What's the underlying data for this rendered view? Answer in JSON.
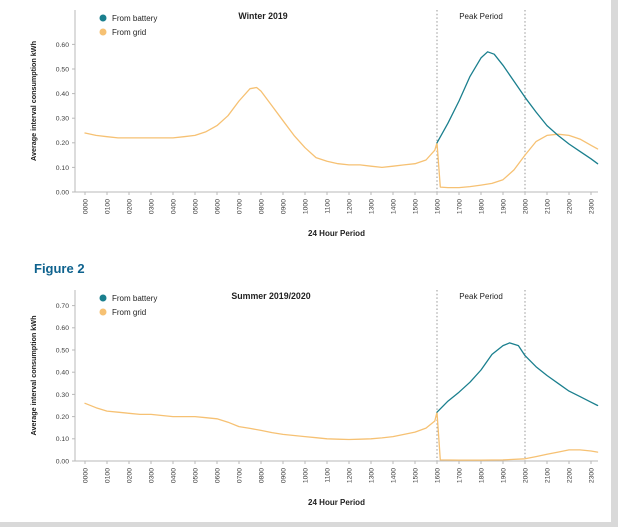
{
  "figure_label": "Figure 2",
  "colors": {
    "battery": "#1a7f8e",
    "grid": "#f6c173",
    "figure_label": "#0e628e",
    "axis": "#b9b9b9",
    "tick_text": "#3c3c3c",
    "text": "#1f1f1f",
    "peak_line": "#8c8c8c"
  },
  "chart_data": [
    {
      "type": "line",
      "title": "Winter 2019",
      "ylabel": "Average interval consumption kWh",
      "xlabel": "24 Hour Period",
      "ylim": [
        0,
        0.6
      ],
      "y_tick_labels": [
        "0.00",
        "0.10",
        "0.20",
        "0.30",
        "0.40",
        "0.50",
        "0.60"
      ],
      "x_tick_labels": [
        "0000",
        "0100",
        "0200",
        "0300",
        "0400",
        "0500",
        "0600",
        "0700",
        "0800",
        "0900",
        "1000",
        "1100",
        "1200",
        "1300",
        "1400",
        "1500",
        "1600",
        "1700",
        "1800",
        "1900",
        "2000",
        "2100",
        "2200",
        "2300"
      ],
      "peak_period": {
        "label": "Peak Period",
        "from_hour": 16,
        "to_hour": 20
      },
      "series": [
        {
          "name": "From battery",
          "color_key": "battery",
          "points": [
            [
              16,
              0.2
            ],
            [
              16.5,
              0.28
            ],
            [
              17,
              0.37
            ],
            [
              17.5,
              0.47
            ],
            [
              18,
              0.545
            ],
            [
              18.3,
              0.57
            ],
            [
              18.6,
              0.56
            ],
            [
              19,
              0.515
            ],
            [
              19.5,
              0.45
            ],
            [
              20,
              0.385
            ],
            [
              20.5,
              0.325
            ],
            [
              21,
              0.27
            ],
            [
              21.5,
              0.23
            ],
            [
              22,
              0.195
            ],
            [
              22.5,
              0.165
            ],
            [
              23,
              0.135
            ],
            [
              23.3,
              0.115
            ]
          ]
        },
        {
          "name": "From grid",
          "color_key": "grid",
          "points": [
            [
              0,
              0.24
            ],
            [
              0.5,
              0.23
            ],
            [
              1,
              0.225
            ],
            [
              1.5,
              0.22
            ],
            [
              2,
              0.22
            ],
            [
              2.5,
              0.22
            ],
            [
              3,
              0.22
            ],
            [
              3.5,
              0.22
            ],
            [
              4,
              0.22
            ],
            [
              4.5,
              0.225
            ],
            [
              5,
              0.23
            ],
            [
              5.5,
              0.245
            ],
            [
              6,
              0.27
            ],
            [
              6.5,
              0.31
            ],
            [
              7,
              0.37
            ],
            [
              7.5,
              0.42
            ],
            [
              7.8,
              0.425
            ],
            [
              8,
              0.41
            ],
            [
              8.5,
              0.35
            ],
            [
              9,
              0.29
            ],
            [
              9.5,
              0.23
            ],
            [
              10,
              0.18
            ],
            [
              10.5,
              0.14
            ],
            [
              11,
              0.125
            ],
            [
              11.5,
              0.115
            ],
            [
              12,
              0.11
            ],
            [
              12.5,
              0.11
            ],
            [
              13,
              0.105
            ],
            [
              13.5,
              0.1
            ],
            [
              14,
              0.105
            ],
            [
              14.5,
              0.11
            ],
            [
              15,
              0.115
            ],
            [
              15.5,
              0.13
            ],
            [
              15.9,
              0.17
            ],
            [
              16,
              0.2
            ],
            [
              16.15,
              0.02
            ],
            [
              16.5,
              0.018
            ],
            [
              17,
              0.018
            ],
            [
              17.5,
              0.022
            ],
            [
              18,
              0.028
            ],
            [
              18.5,
              0.035
            ],
            [
              19,
              0.05
            ],
            [
              19.5,
              0.09
            ],
            [
              20,
              0.15
            ],
            [
              20.5,
              0.205
            ],
            [
              21,
              0.23
            ],
            [
              21.5,
              0.235
            ],
            [
              22,
              0.23
            ],
            [
              22.5,
              0.215
            ],
            [
              23,
              0.19
            ],
            [
              23.3,
              0.175
            ]
          ]
        }
      ]
    },
    {
      "type": "line",
      "title": "Summer 2019/2020",
      "ylabel": "Average interval consumption kWh",
      "xlabel": "24 Hour Period",
      "ylim": [
        0,
        0.7
      ],
      "y_tick_labels": [
        "0.00",
        "0.10",
        "0.20",
        "0.30",
        "0.40",
        "0.50",
        "0.60",
        "0.70"
      ],
      "x_tick_labels": [
        "0000",
        "0100",
        "0200",
        "0300",
        "0400",
        "0500",
        "0600",
        "0700",
        "0800",
        "0900",
        "1000",
        "1100",
        "1200",
        "1300",
        "1400",
        "1500",
        "1600",
        "1700",
        "1800",
        "1900",
        "2000",
        "2100",
        "2200",
        "2300"
      ],
      "peak_period": {
        "label": "Peak Period",
        "from_hour": 16,
        "to_hour": 20
      },
      "series": [
        {
          "name": "From battery",
          "color_key": "battery",
          "points": [
            [
              16,
              0.22
            ],
            [
              16.5,
              0.27
            ],
            [
              17,
              0.31
            ],
            [
              17.5,
              0.355
            ],
            [
              18,
              0.41
            ],
            [
              18.5,
              0.48
            ],
            [
              19,
              0.52
            ],
            [
              19.3,
              0.532
            ],
            [
              19.7,
              0.52
            ],
            [
              20,
              0.475
            ],
            [
              20.5,
              0.425
            ],
            [
              21,
              0.385
            ],
            [
              21.5,
              0.35
            ],
            [
              22,
              0.315
            ],
            [
              22.5,
              0.29
            ],
            [
              23,
              0.265
            ],
            [
              23.3,
              0.25
            ]
          ]
        },
        {
          "name": "From grid",
          "color_key": "grid",
          "points": [
            [
              0,
              0.26
            ],
            [
              0.5,
              0.24
            ],
            [
              1,
              0.225
            ],
            [
              1.5,
              0.22
            ],
            [
              2,
              0.215
            ],
            [
              2.5,
              0.21
            ],
            [
              3,
              0.21
            ],
            [
              3.5,
              0.205
            ],
            [
              4,
              0.2
            ],
            [
              4.5,
              0.2
            ],
            [
              5,
              0.2
            ],
            [
              5.5,
              0.195
            ],
            [
              6,
              0.19
            ],
            [
              6.5,
              0.175
            ],
            [
              7,
              0.155
            ],
            [
              7.5,
              0.147
            ],
            [
              8,
              0.138
            ],
            [
              8.5,
              0.128
            ],
            [
              9,
              0.12
            ],
            [
              9.5,
              0.115
            ],
            [
              10,
              0.11
            ],
            [
              10.5,
              0.105
            ],
            [
              11,
              0.1
            ],
            [
              11.5,
              0.098
            ],
            [
              12,
              0.097
            ],
            [
              12.5,
              0.098
            ],
            [
              13,
              0.1
            ],
            [
              13.5,
              0.104
            ],
            [
              14,
              0.11
            ],
            [
              14.5,
              0.12
            ],
            [
              15,
              0.13
            ],
            [
              15.5,
              0.148
            ],
            [
              15.9,
              0.18
            ],
            [
              16,
              0.22
            ],
            [
              16.15,
              0.005
            ],
            [
              17,
              0.004
            ],
            [
              18,
              0.004
            ],
            [
              19,
              0.005
            ],
            [
              20,
              0.01
            ],
            [
              20.5,
              0.02
            ],
            [
              21,
              0.03
            ],
            [
              21.5,
              0.04
            ],
            [
              22,
              0.05
            ],
            [
              22.5,
              0.05
            ],
            [
              23,
              0.045
            ],
            [
              23.3,
              0.04
            ]
          ]
        }
      ]
    }
  ]
}
